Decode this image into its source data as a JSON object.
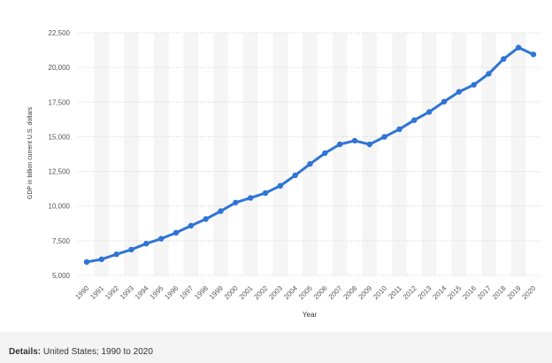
{
  "chart_data": {
    "type": "line",
    "title": "",
    "xlabel": "Year",
    "ylabel": "GDP in billion current U.S. dollars",
    "ylim": [
      5000,
      22500
    ],
    "yticks": [
      5000,
      7500,
      10000,
      12500,
      15000,
      17500,
      20000,
      22500
    ],
    "ytick_labels": [
      "5,000",
      "7,500",
      "10,000",
      "12,500",
      "15,000",
      "17,500",
      "20,000",
      "22,500"
    ],
    "grid": "horizontal dashed",
    "categories": [
      "1990",
      "1991",
      "1992",
      "1993",
      "1994",
      "1995",
      "1996",
      "1997",
      "1998",
      "1999",
      "2000",
      "2001",
      "2002",
      "2003",
      "2004",
      "2005",
      "2006",
      "2007",
      "2008",
      "2009",
      "2010",
      "2011",
      "2012",
      "2013",
      "2014",
      "2015",
      "2016",
      "2017",
      "2018",
      "2019",
      "2020"
    ],
    "series": [
      {
        "name": "",
        "color": "#2f74d5",
        "values": [
          5963,
          6158,
          6520,
          6859,
          7287,
          7640,
          8073,
          8578,
          9063,
          9631,
          10252,
          10582,
          10936,
          11458,
          12214,
          13037,
          13815,
          14452,
          14713,
          14449,
          14992,
          15543,
          16197,
          16785,
          17527,
          18238,
          18745,
          19543,
          20612,
          21433,
          20937
        ]
      }
    ]
  },
  "details": {
    "label": "Details:",
    "text": "United States; 1990 to 2020"
  }
}
